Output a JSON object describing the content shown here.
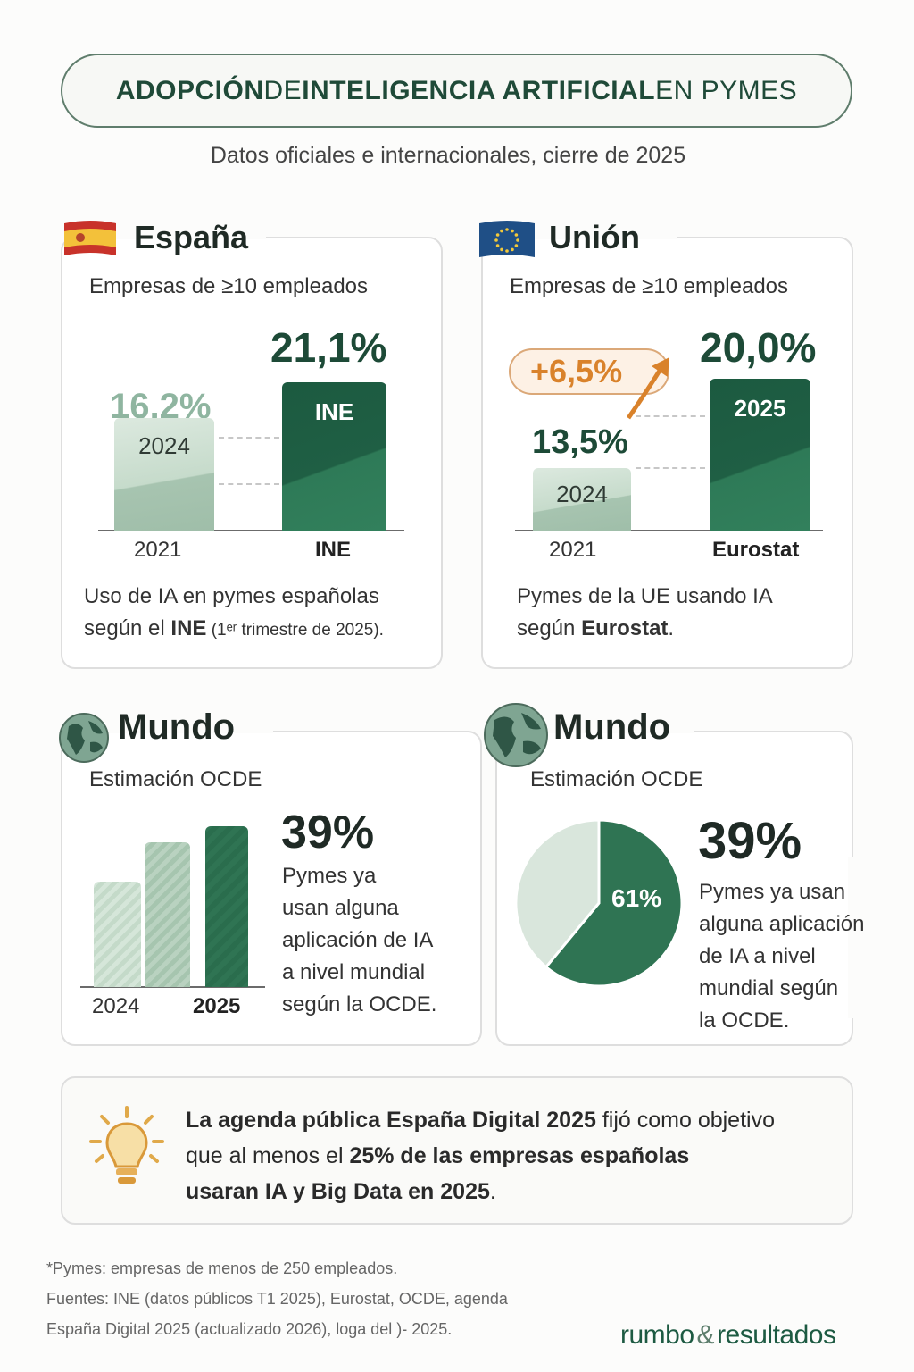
{
  "header": {
    "title_parts": [
      "ADOPCIÓN",
      " DE ",
      "INTELIGENCIA ARTIFICIAL",
      " EN PYMES"
    ],
    "subtitle": "Datos oficiales e internacionales, cierre de 2025"
  },
  "spain": {
    "title": "España",
    "flag": "spain-flag-icon",
    "subtitle": "Empresas de ≥10 empleados",
    "caption_line1": "Uso de IA en pymes españolas",
    "caption_pre": "según el ",
    "caption_bold": "INE",
    "caption_small": " (1ᵉʳ trimestre de 2025)."
  },
  "eu": {
    "title": "Unión",
    "flag": "eu-flag-icon",
    "subtitle": "Empresas de ≥10 empleados",
    "change_badge": "+6,5%",
    "caption_line1": "Pymes de la UE usando IA",
    "caption_pre": "según ",
    "caption_bold": "Eurostat",
    "caption_post": "."
  },
  "world_bars": {
    "title": "Mundo",
    "icon": "globe-icon",
    "subtitle": "Estimación OCDE",
    "big_value": "39%",
    "text_lines": [
      "Pymes ya",
      "usan alguna",
      "aplicación de IA",
      "a nivel mundial",
      "según la OCDE."
    ]
  },
  "world_pie": {
    "title": "Mundo",
    "icon": "globe-icon",
    "subtitle": "Estimación OCDE",
    "big_value": "39%",
    "text_lines": [
      "Pymes ya usan",
      "alguna aplicación",
      "de IA a nivel",
      "mundial según",
      "la OCDE."
    ]
  },
  "agenda": {
    "icon": "lightbulb-icon",
    "line1_bold": "La agenda pública España Digital 2025",
    "line1_rest": " fijó como objetivo",
    "line2_pre": "que al menos el ",
    "line2_bold": "25% de las empresas españolas",
    "line3_bold": "usaran IA y Big Data en 2025",
    "line3_post": "."
  },
  "footer": {
    "note": "*Pymes: empresas de menos de 250 empleados.",
    "sources_line1": "Fuentes: INE (datos públicos T1 2025), Eurostat, OCDE, agenda",
    "sources_line2": "España Digital 2025 (actualizado 2026), loga del )- 2025.",
    "logo_left": "rumbo",
    "logo_amp": "&",
    "logo_right": "resultados"
  },
  "colors": {
    "dark_green": "#1f5f44",
    "light_green": "#c6dbcb",
    "accent_orange": "#d9822b",
    "text_green": "#1d4a37"
  },
  "chart_data": [
    {
      "type": "bar",
      "categories": [
        "2021",
        "INE"
      ],
      "bar_labels": [
        "2024",
        "INE"
      ],
      "values": [
        16.2,
        21.1
      ],
      "value_labels": [
        "16,2%",
        "21,1%"
      ],
      "unit": "%"
    },
    {
      "type": "bar",
      "categories": [
        "2021",
        "Eurostat"
      ],
      "bar_labels": [
        "2024",
        "2025"
      ],
      "values": [
        13.5,
        20.0
      ],
      "value_labels": [
        "13,5%",
        "20,0%"
      ],
      "unit": "%"
    },
    {
      "type": "bar",
      "categories": [
        "2024",
        "",
        "2025"
      ],
      "values": [
        25.6,
        35.0,
        39
      ],
      "unit": "%"
    },
    {
      "type": "pie",
      "slices": [
        {
          "label": "61%",
          "value": 61
        },
        {
          "label": "39%",
          "value": 39
        }
      ]
    }
  ]
}
